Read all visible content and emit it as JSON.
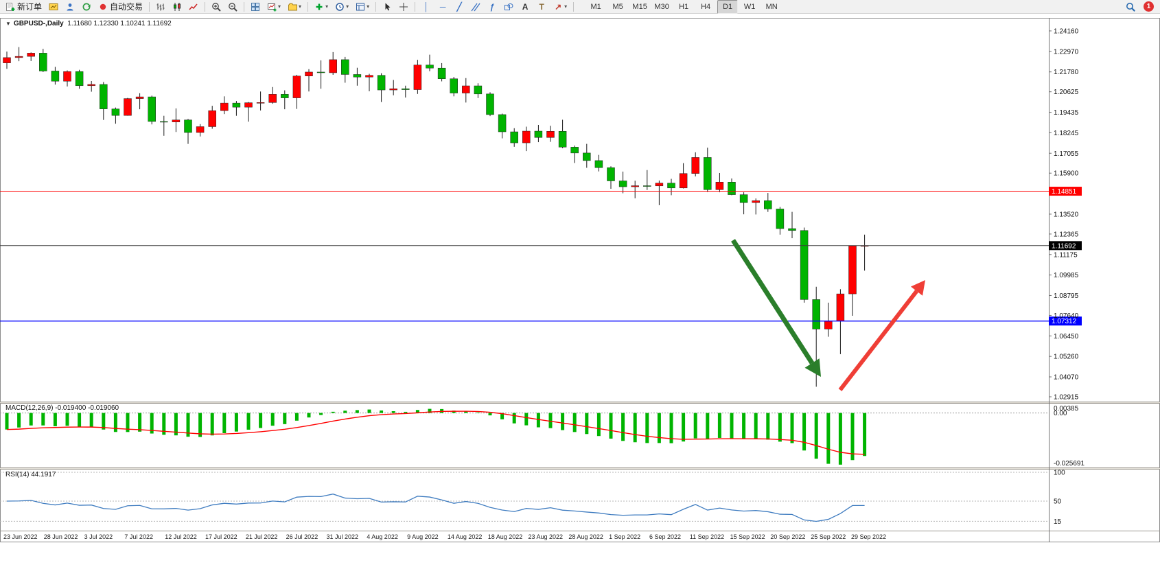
{
  "toolbar": {
    "new_order_label": "新订单",
    "autotrading_label": "自动交易",
    "items": [
      {
        "name": "new-order-button",
        "icon": "new-order-icon",
        "label_key": "new_order_label"
      },
      {
        "name": "charts-profile-button",
        "icon": "charts-icon"
      },
      {
        "name": "metaeditor-button",
        "icon": "profile-icon"
      },
      {
        "name": "refresh-button",
        "icon": "refresh-icon"
      },
      {
        "name": "autotrading-button",
        "icon": "autotrading-icon",
        "label_key": "autotrading_label"
      },
      {
        "sep": true
      },
      {
        "name": "bar-chart-button",
        "icon": "bar-chart-icon"
      },
      {
        "name": "candlestick-chart-button",
        "icon": "candlestick-icon"
      },
      {
        "name": "line-chart-button",
        "icon": "line-chart-icon"
      },
      {
        "sep": true
      },
      {
        "name": "zoom-in-button",
        "icon": "zoom-in-icon"
      },
      {
        "name": "zoom-out-button",
        "icon": "zoom-out-icon"
      },
      {
        "sep": true
      },
      {
        "name": "tile-windows-button",
        "icon": "tile-windows-icon"
      },
      {
        "name": "new-chart-button",
        "icon": "new-chart-icon",
        "dropdown": true
      },
      {
        "name": "profiles-button",
        "icon": "profiles-icon",
        "dropdown": true
      },
      {
        "sep": true
      },
      {
        "name": "indicators-button",
        "icon": "indicators-icon",
        "dropdown": true
      },
      {
        "name": "periods-button",
        "icon": "clock-icon",
        "dropdown": true
      },
      {
        "name": "templates-button",
        "icon": "templates-icon",
        "dropdown": true
      },
      {
        "sep": true
      },
      {
        "name": "cursor-button",
        "icon": "cursor-icon"
      },
      {
        "name": "crosshair-button",
        "icon": "crosshair-icon"
      },
      {
        "sep": true
      },
      {
        "name": "vertical-line-button",
        "icon": "vertical-line-icon"
      },
      {
        "name": "horizontal-line-button",
        "icon": "horizontal-line-icon"
      },
      {
        "name": "trendline-button",
        "icon": "trendline-icon"
      },
      {
        "name": "channel-button",
        "icon": "channel-icon"
      },
      {
        "name": "fibonacci-button",
        "icon": "fibonacci-icon"
      },
      {
        "name": "shapes-button",
        "icon": "shapes-icon"
      },
      {
        "name": "text-button",
        "icon": "text-icon"
      },
      {
        "name": "text-label-button",
        "icon": "text-label-icon"
      },
      {
        "name": "arrows-button",
        "icon": "arrows-icon",
        "dropdown": true
      },
      {
        "sep": true
      }
    ],
    "timeframes": [
      {
        "label": "M1"
      },
      {
        "label": "M5"
      },
      {
        "label": "M15"
      },
      {
        "label": "M30"
      },
      {
        "label": "H1"
      },
      {
        "label": "H4"
      },
      {
        "label": "D1",
        "active": true
      },
      {
        "label": "W1"
      },
      {
        "label": "MN"
      }
    ],
    "notification_count": "1"
  },
  "chart_data": {
    "type": "candlestick",
    "symbol": "GBPUSD-,Daily",
    "ohlc_text": "1.11680 1.12330 1.10241 1.11692",
    "colors": {
      "bull": "#ff0000",
      "bear": "#00b400",
      "wick": "#1a1a1a",
      "macd_histogram": "#00b400",
      "macd_signal": "#ff0000",
      "rsi_line": "#3f7cc0"
    },
    "candles": [
      [
        "23 Jun",
        1.223,
        1.2296,
        1.2196,
        1.2261
      ],
      [
        "24 Jun",
        1.2261,
        1.2322,
        1.224,
        1.2268
      ],
      [
        "27 Jun",
        1.2268,
        1.2291,
        1.2241,
        1.2287
      ],
      [
        "28 Jun",
        1.2287,
        1.2312,
        1.2177,
        1.2183
      ],
      [
        "29 Jun",
        1.2183,
        1.2207,
        1.2104,
        1.2124
      ],
      [
        "30 Jun",
        1.2124,
        1.2187,
        1.2093,
        1.218
      ],
      [
        "1 Jul",
        1.218,
        1.219,
        1.208,
        1.2098
      ],
      [
        "4 Jul",
        1.2098,
        1.2125,
        1.2063,
        1.2105
      ],
      [
        "5 Jul",
        1.2105,
        1.2119,
        1.1899,
        1.1963
      ],
      [
        "6 Jul",
        1.1963,
        1.1971,
        1.1877,
        1.1925
      ],
      [
        "7 Jul",
        1.1925,
        1.2027,
        1.1923,
        1.2023
      ],
      [
        "8 Jul",
        1.2023,
        1.2054,
        1.1961,
        1.2033
      ],
      [
        "11 Jul",
        1.2033,
        1.204,
        1.1873,
        1.189
      ],
      [
        "12 Jul",
        1.189,
        1.1923,
        1.1807,
        1.1887
      ],
      [
        "13 Jul",
        1.1887,
        1.1966,
        1.1829,
        1.1899
      ],
      [
        "14 Jul",
        1.1899,
        1.1905,
        1.176,
        1.1826
      ],
      [
        "15 Jul",
        1.1826,
        1.1875,
        1.1803,
        1.186
      ],
      [
        "18 Jul",
        1.186,
        1.1981,
        1.1848,
        1.1953
      ],
      [
        "19 Jul",
        1.1953,
        1.2036,
        1.1933,
        1.1997
      ],
      [
        "20 Jul",
        1.1997,
        1.2009,
        1.1923,
        1.1973
      ],
      [
        "21 Jul",
        1.1973,
        1.2003,
        1.1889,
        1.1999
      ],
      [
        "22 Jul",
        1.1999,
        1.2064,
        1.1954,
        1.2
      ],
      [
        "25 Jul",
        1.2,
        1.209,
        1.1993,
        1.2048
      ],
      [
        "26 Jul",
        1.2048,
        1.2071,
        1.1961,
        1.2027
      ],
      [
        "27 Jul",
        1.2027,
        1.2161,
        1.1963,
        1.2154
      ],
      [
        "28 Jul",
        1.2154,
        1.2194,
        1.2064,
        1.2177
      ],
      [
        "29 Jul",
        1.2177,
        1.2245,
        1.208,
        1.2173
      ],
      [
        "1 Aug",
        1.2173,
        1.2293,
        1.2161,
        1.2249
      ],
      [
        "2 Aug",
        1.2249,
        1.2265,
        1.2115,
        1.2163
      ],
      [
        "3 Aug",
        1.2163,
        1.2202,
        1.2098,
        1.2148
      ],
      [
        "4 Aug",
        1.2148,
        1.2167,
        1.2065,
        1.2158
      ],
      [
        "5 Aug",
        1.2158,
        1.217,
        1.2003,
        1.2073
      ],
      [
        "8 Aug",
        1.2073,
        1.2131,
        1.2042,
        1.208
      ],
      [
        "9 Aug",
        1.208,
        1.2098,
        1.2029,
        1.2075
      ],
      [
        "10 Aug",
        1.2075,
        1.2248,
        1.205,
        1.2218
      ],
      [
        "11 Aug",
        1.2218,
        1.2278,
        1.2182,
        1.22
      ],
      [
        "12 Aug",
        1.22,
        1.2229,
        1.2123,
        1.2138
      ],
      [
        "15 Aug",
        1.2138,
        1.2149,
        1.2036,
        1.2055
      ],
      [
        "16 Aug",
        1.2055,
        1.2142,
        1.2,
        1.2097
      ],
      [
        "17 Aug",
        1.2097,
        1.2112,
        1.2026,
        1.205
      ],
      [
        "18 Aug",
        1.205,
        1.206,
        1.1921,
        1.193
      ],
      [
        "19 Aug",
        1.193,
        1.1936,
        1.1792,
        1.183
      ],
      [
        "22 Aug",
        1.183,
        1.1851,
        1.1743,
        1.1766
      ],
      [
        "23 Aug",
        1.1766,
        1.186,
        1.1718,
        1.1834
      ],
      [
        "24 Aug",
        1.1834,
        1.187,
        1.177,
        1.1797
      ],
      [
        "25 Aug",
        1.1797,
        1.1865,
        1.1772,
        1.1833
      ],
      [
        "26 Aug",
        1.1833,
        1.19,
        1.1735,
        1.1741
      ],
      [
        "29 Aug",
        1.1741,
        1.175,
        1.1649,
        1.1707
      ],
      [
        "30 Aug",
        1.1707,
        1.176,
        1.1621,
        1.1663
      ],
      [
        "31 Aug",
        1.1663,
        1.1696,
        1.16,
        1.1622
      ],
      [
        "1 Sep",
        1.1622,
        1.163,
        1.1499,
        1.1545
      ],
      [
        "2 Sep",
        1.1545,
        1.1599,
        1.1473,
        1.1511
      ],
      [
        "5 Sep",
        1.1511,
        1.1546,
        1.1444,
        1.1517
      ],
      [
        "6 Sep",
        1.1517,
        1.1608,
        1.1492,
        1.1516
      ],
      [
        "7 Sep",
        1.1516,
        1.1547,
        1.1404,
        1.1532
      ],
      [
        "8 Sep",
        1.1532,
        1.1557,
        1.1462,
        1.1504
      ],
      [
        "9 Sep",
        1.1504,
        1.1648,
        1.1501,
        1.1588
      ],
      [
        "12 Sep",
        1.1588,
        1.1711,
        1.1571,
        1.1681
      ],
      [
        "13 Sep",
        1.1681,
        1.1738,
        1.148,
        1.1494
      ],
      [
        "14 Sep",
        1.1494,
        1.1591,
        1.1479,
        1.1538
      ],
      [
        "15 Sep",
        1.1538,
        1.1559,
        1.1462,
        1.1465
      ],
      [
        "16 Sep",
        1.1465,
        1.1479,
        1.1351,
        1.1419
      ],
      [
        "19 Sep",
        1.1419,
        1.1443,
        1.135,
        1.143
      ],
      [
        "20 Sep",
        1.143,
        1.1475,
        1.1365,
        1.1382
      ],
      [
        "21 Sep",
        1.1382,
        1.1394,
        1.1233,
        1.1268
      ],
      [
        "22 Sep",
        1.1268,
        1.1365,
        1.1212,
        1.1257
      ],
      [
        "23 Sep",
        1.1257,
        1.1274,
        1.0838,
        1.0856
      ],
      [
        "26 Sep",
        1.0856,
        1.093,
        1.035,
        1.0685
      ],
      [
        "27 Sep",
        1.0685,
        1.0838,
        1.064,
        1.0733
      ],
      [
        "28 Sep",
        1.0733,
        1.0916,
        1.0539,
        1.0889
      ],
      [
        "29 Sep",
        1.0889,
        1.117,
        1.0762,
        1.1168
      ],
      [
        "30 Sep",
        1.1168,
        1.1233,
        1.1024,
        1.1169
      ]
    ],
    "y_axis_labels": [
      "1.24160",
      "1.22970",
      "1.21780",
      "1.20625",
      "1.19435",
      "1.18245",
      "1.17055",
      "1.15900",
      "1.13520",
      "1.12365",
      "1.11175",
      "1.09985",
      "1.08795",
      "1.07640",
      "1.06450",
      "1.05260",
      "1.04070",
      "1.02915"
    ],
    "x_axis_labels": [
      "23 Jun 2022",
      "28 Jun 2022",
      "3 Jul 2022",
      "7 Jul 2022",
      "12 Jul 2022",
      "17 Jul 2022",
      "21 Jul 2022",
      "26 Jul 2022",
      "31 Jul 2022",
      "4 Aug 2022",
      "9 Aug 2022",
      "14 Aug 2022",
      "18 Aug 2022",
      "23 Aug 2022",
      "28 Aug 2022",
      "1 Sep 2022",
      "6 Sep 2022",
      "11 Sep 2022",
      "15 Sep 2022",
      "20 Sep 2022",
      "25 Sep 2022",
      "29 Sep 2022"
    ],
    "lines": [
      {
        "name": "resistance-line",
        "price": 1.14851,
        "label": "1.14851",
        "color": "#ff0000",
        "width": 1
      },
      {
        "name": "bid-price-line",
        "price": 1.11692,
        "label": "1.11692",
        "color": "#3a3a3a",
        "box": "#000000",
        "width": 1
      },
      {
        "name": "support-line",
        "price": 1.07312,
        "label": "1.07312",
        "color": "#0000ff",
        "width": 1.4
      }
    ],
    "arrows": [
      {
        "name": "drawn-arrow-down",
        "color": "#2a7e2a",
        "from": [
          1068,
          350
        ],
        "to": [
          1196,
          549
        ],
        "width": 7
      },
      {
        "name": "drawn-arrow-up",
        "color": "#ef3e36",
        "from": [
          1224,
          568
        ],
        "to": [
          1348,
          408
        ],
        "width": 6
      }
    ],
    "indicators": {
      "macd": {
        "label": "MACD(12,26,9)",
        "values_text": "-0.019400 -0.019060",
        "axis_labels": [
          "0.00385",
          "0.00",
          "-0.025691"
        ],
        "range": [
          -0.025691,
          0.00385
        ]
      },
      "rsi": {
        "label": "RSI(14)",
        "value_text": "44.1917",
        "levels": [
          100,
          50,
          15
        ],
        "range": [
          0,
          100
        ]
      }
    }
  }
}
